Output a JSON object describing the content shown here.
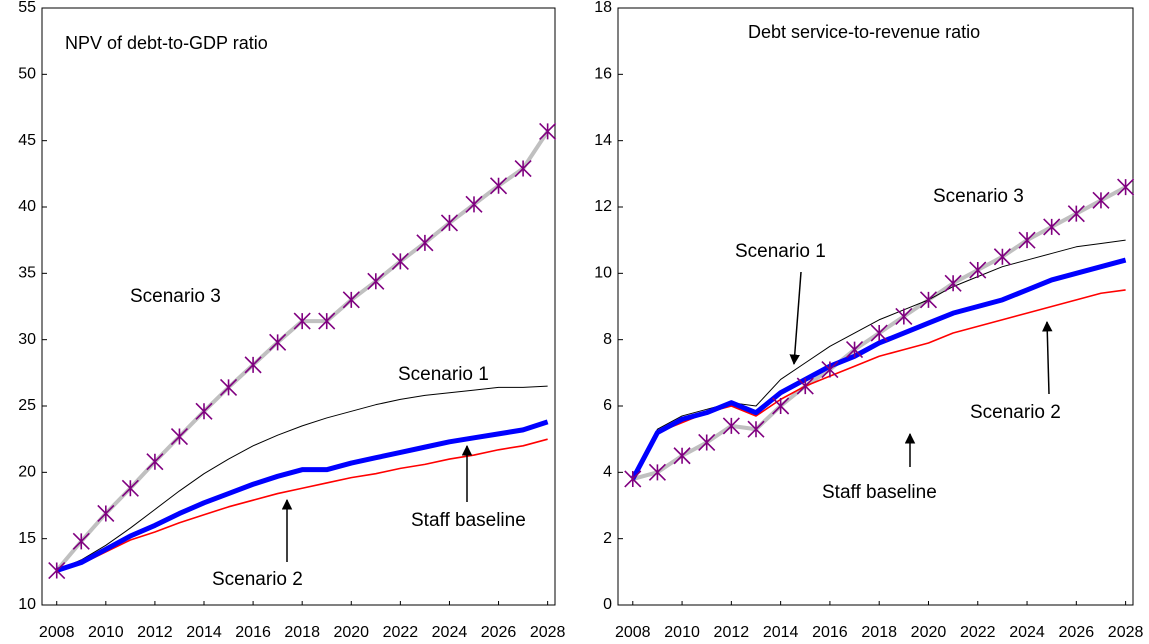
{
  "chart_data": [
    {
      "type": "line",
      "title": "NPV of debt-to-GDP ratio",
      "x": [
        2008,
        2009,
        2010,
        2011,
        2012,
        2013,
        2014,
        2015,
        2016,
        2017,
        2018,
        2019,
        2020,
        2021,
        2022,
        2023,
        2024,
        2025,
        2026,
        2027,
        2028
      ],
      "xlim": [
        2007.4,
        2028.3
      ],
      "xticks": [
        2008,
        2010,
        2012,
        2014,
        2016,
        2018,
        2020,
        2022,
        2024,
        2026,
        2028
      ],
      "ylim": [
        10,
        55
      ],
      "yticks": [
        10,
        15,
        20,
        25,
        30,
        35,
        40,
        45,
        50,
        55
      ],
      "series": [
        {
          "name": "Scenario 3",
          "color": "#c0c0c0",
          "marker": "asterisk",
          "marker_color": "#800080",
          "values": [
            12.6,
            14.8,
            16.9,
            18.8,
            20.8,
            22.7,
            24.6,
            26.4,
            28.1,
            29.8,
            31.4,
            31.4,
            33.0,
            34.4,
            35.9,
            37.3,
            38.8,
            40.2,
            41.6,
            42.9,
            45.7
          ]
        },
        {
          "name": "Scenario 1",
          "color": "#000000",
          "values": [
            12.6,
            13.4,
            14.5,
            15.8,
            17.2,
            18.6,
            19.9,
            21.0,
            22.0,
            22.8,
            23.5,
            24.1,
            24.6,
            25.1,
            25.5,
            25.8,
            26.0,
            26.2,
            26.4,
            26.4,
            26.5
          ]
        },
        {
          "name": "Scenario 2",
          "color": "#ff0000",
          "values": [
            12.6,
            13.1,
            14.0,
            14.9,
            15.5,
            16.2,
            16.8,
            17.4,
            17.9,
            18.4,
            18.8,
            19.2,
            19.6,
            19.9,
            20.3,
            20.6,
            21.0,
            21.3,
            21.7,
            22.0,
            22.5
          ]
        },
        {
          "name": "Staff baseline",
          "color": "#0000ff",
          "values": [
            12.6,
            13.2,
            14.2,
            15.2,
            16.0,
            16.9,
            17.7,
            18.4,
            19.1,
            19.7,
            20.2,
            20.2,
            20.7,
            21.1,
            21.5,
            21.9,
            22.3,
            22.6,
            22.9,
            23.2,
            23.8
          ]
        }
      ]
    },
    {
      "type": "line",
      "title": "Debt service-to-revenue ratio",
      "x": [
        2008,
        2009,
        2010,
        2011,
        2012,
        2013,
        2014,
        2015,
        2016,
        2017,
        2018,
        2019,
        2020,
        2021,
        2022,
        2023,
        2024,
        2025,
        2026,
        2027,
        2028
      ],
      "xlim": [
        2007.4,
        2028.3
      ],
      "xticks": [
        2008,
        2010,
        2012,
        2014,
        2016,
        2018,
        2020,
        2022,
        2024,
        2026,
        2028
      ],
      "ylim": [
        0,
        18
      ],
      "yticks": [
        0,
        2,
        4,
        6,
        8,
        10,
        12,
        14,
        16,
        18
      ],
      "series": [
        {
          "name": "Scenario 3",
          "color": "#c0c0c0",
          "marker": "asterisk",
          "marker_color": "#800080",
          "values": [
            3.8,
            4.0,
            4.5,
            4.9,
            5.4,
            5.3,
            6.0,
            6.6,
            7.1,
            7.7,
            8.2,
            8.7,
            9.2,
            9.7,
            10.1,
            10.5,
            11.0,
            11.4,
            11.8,
            12.2,
            12.6
          ]
        },
        {
          "name": "Scenario 1",
          "color": "#000000",
          "values": [
            3.8,
            5.3,
            5.7,
            5.9,
            6.1,
            6.0,
            6.8,
            7.3,
            7.8,
            8.2,
            8.6,
            8.9,
            9.2,
            9.6,
            9.9,
            10.2,
            10.4,
            10.6,
            10.8,
            10.9,
            11.0
          ]
        },
        {
          "name": "Scenario 2",
          "color": "#ff0000",
          "values": [
            3.8,
            5.2,
            5.5,
            5.8,
            6.0,
            5.7,
            6.2,
            6.6,
            6.9,
            7.2,
            7.5,
            7.7,
            7.9,
            8.2,
            8.4,
            8.6,
            8.8,
            9.0,
            9.2,
            9.4,
            9.5
          ]
        },
        {
          "name": "Staff baseline",
          "color": "#0000ff",
          "values": [
            3.8,
            5.2,
            5.6,
            5.8,
            6.1,
            5.8,
            6.4,
            6.8,
            7.2,
            7.5,
            7.9,
            8.2,
            8.5,
            8.8,
            9.0,
            9.2,
            9.5,
            9.8,
            10.0,
            10.2,
            10.4
          ]
        }
      ]
    }
  ]
}
